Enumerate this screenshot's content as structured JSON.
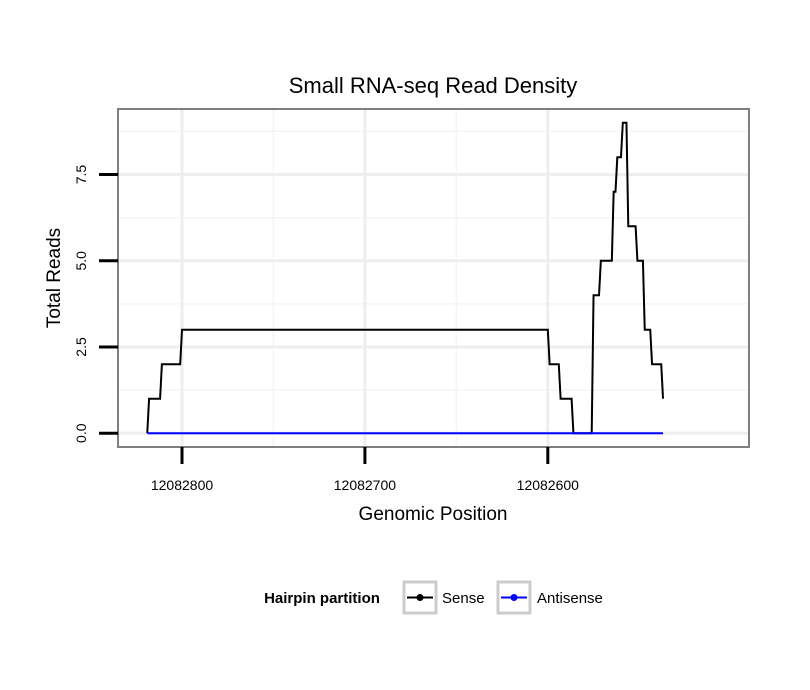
{
  "chart_data": {
    "type": "line",
    "title": "Small RNA-seq Read Density",
    "xlabel": "Genomic Position",
    "ylabel": "Total Reads",
    "xlim": [
      12082835,
      12082490
    ],
    "ylim": [
      -0.4,
      9.4
    ],
    "x_reversed": true,
    "grid": true,
    "x_ticks": [
      12082800,
      12082700,
      12082600
    ],
    "x_tick_labels": [
      "12082800",
      "12082700",
      "12082600"
    ],
    "y_ticks": [
      0,
      2.5,
      5,
      7.5
    ],
    "y_tick_labels": [
      "0.0",
      "2.5",
      "5.0",
      "7.5"
    ],
    "legend": {
      "title": "Hairpin partition",
      "position": "bottom",
      "entries": [
        "Sense",
        "Antisense"
      ]
    },
    "series": [
      {
        "name": "Sense",
        "color": "#000000",
        "x": [
          12082819,
          12082818,
          12082812,
          12082811,
          12082801,
          12082800,
          12082600,
          12082599,
          12082594,
          12082593,
          12082587,
          12082586,
          12082576,
          12082575,
          12082572,
          12082571,
          12082565,
          12082564,
          12082563,
          12082562,
          12082560,
          12082559,
          12082557,
          12082556,
          12082552,
          12082551,
          12082548,
          12082547,
          12082544,
          12082543,
          12082538,
          12082537
        ],
        "values": [
          0,
          1,
          1,
          2,
          2,
          3,
          3,
          2,
          2,
          1,
          1,
          0,
          0,
          4,
          4,
          5,
          5,
          7,
          7,
          8,
          8,
          9,
          9,
          6,
          6,
          5,
          5,
          3,
          3,
          2,
          2,
          1
        ]
      },
      {
        "name": "Antisense",
        "color": "#0000ff",
        "x": [
          12082819,
          12082537
        ],
        "values": [
          0,
          0
        ]
      }
    ]
  }
}
